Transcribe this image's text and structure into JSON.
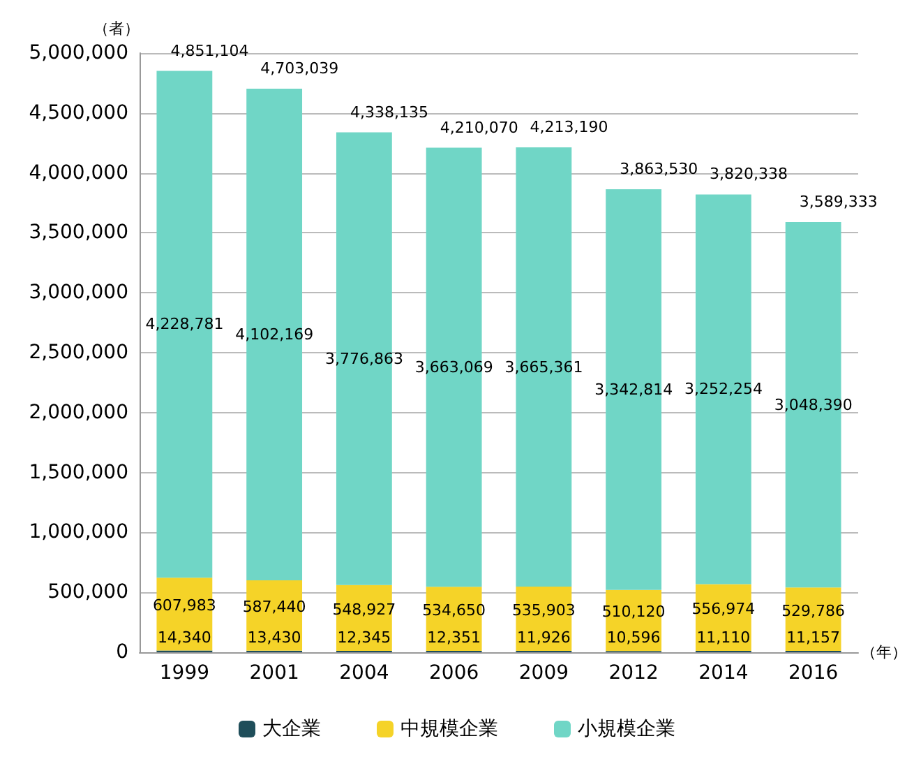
{
  "chart_data": {
    "type": "bar",
    "stacked": true,
    "ylabel": "（者）",
    "xlabel": "（年）",
    "categories": [
      "1999",
      "2001",
      "2004",
      "2006",
      "2009",
      "2012",
      "2014",
      "2016"
    ],
    "ylim": [
      0,
      5000000
    ],
    "yticks": [
      0,
      {
        "value": 500000,
        "label": "500,000"
      },
      {
        "value": 1000000,
        "label": "1,000,000"
      },
      {
        "value": 1500000,
        "label": "1,500,000"
      },
      {
        "value": 2000000,
        "label": "2,000,000"
      },
      {
        "value": 2500000,
        "label": "2,500,000"
      },
      {
        "value": 3000000,
        "label": "3,000,000"
      },
      {
        "value": 3500000,
        "label": "3,500,000"
      },
      {
        "value": 4000000,
        "label": "4,000,000"
      },
      {
        "value": 4500000,
        "label": "4,500,000"
      },
      {
        "value": 5000000,
        "label": "5,000,000"
      }
    ],
    "grid": "y",
    "legend": "bottom",
    "series": [
      {
        "name": "大企業",
        "color": "#1f4e5a",
        "values": [
          14340,
          13430,
          12345,
          12351,
          11926,
          10596,
          11110,
          11157
        ],
        "value_labels": [
          "14,340",
          "13,430",
          "12,345",
          "12,351",
          "11,926",
          "10,596",
          "11,110",
          "11,157"
        ]
      },
      {
        "name": "中規模企業",
        "color": "#f5d328",
        "values": [
          607983,
          587440,
          548927,
          534650,
          535903,
          510120,
          556974,
          529786
        ],
        "value_labels": [
          "607,983",
          "587,440",
          "548,927",
          "534,650",
          "535,903",
          "510,120",
          "556,974",
          "529,786"
        ]
      },
      {
        "name": "小規模企業",
        "color": "#70d6c6",
        "values": [
          4228781,
          4102169,
          3776863,
          3663069,
          3665361,
          3342814,
          3252254,
          3048390
        ],
        "value_labels": [
          "4,228,781",
          "4,102,169",
          "3,776,863",
          "3,663,069",
          "3,665,361",
          "3,342,814",
          "3,252,254",
          "3,048,390"
        ]
      }
    ],
    "totals": [
      "4,851,104",
      "4,703,039",
      "4,338,135",
      "4,210,070",
      "4,213,190",
      "3,863,530",
      "3,820,338",
      "3,589,333"
    ]
  }
}
